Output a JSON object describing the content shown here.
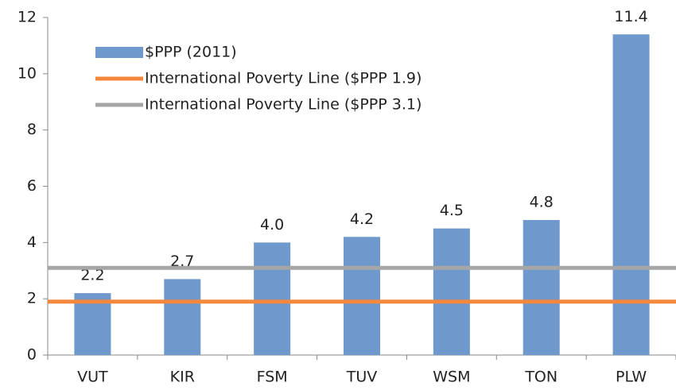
{
  "chart_data": {
    "type": "bar",
    "categories": [
      "VUT",
      "KIR",
      "FSM",
      "TUV",
      "WSM",
      "TON",
      "PLW"
    ],
    "series": [
      {
        "name": "$PPP (2011)",
        "color": "#6f98cc",
        "values": [
          2.2,
          2.7,
          4.0,
          4.2,
          4.5,
          4.8,
          11.4
        ],
        "value_labels": [
          "2.2",
          "2.7",
          "4.0",
          "4.2",
          "4.5",
          "4.8",
          "11.4"
        ]
      }
    ],
    "reference_lines": [
      {
        "name": "International Poverty Line ($PPP 1.9)",
        "color": "#f4883c",
        "value": 1.9
      },
      {
        "name": "International Poverty Line ($PPP 3.1)",
        "color": "#a6a6a6",
        "value": 3.1
      }
    ],
    "ylim": [
      0,
      12
    ],
    "yticks": [
      0,
      2,
      4,
      6,
      8,
      10,
      12
    ],
    "grid": false,
    "legend": "upper left"
  }
}
